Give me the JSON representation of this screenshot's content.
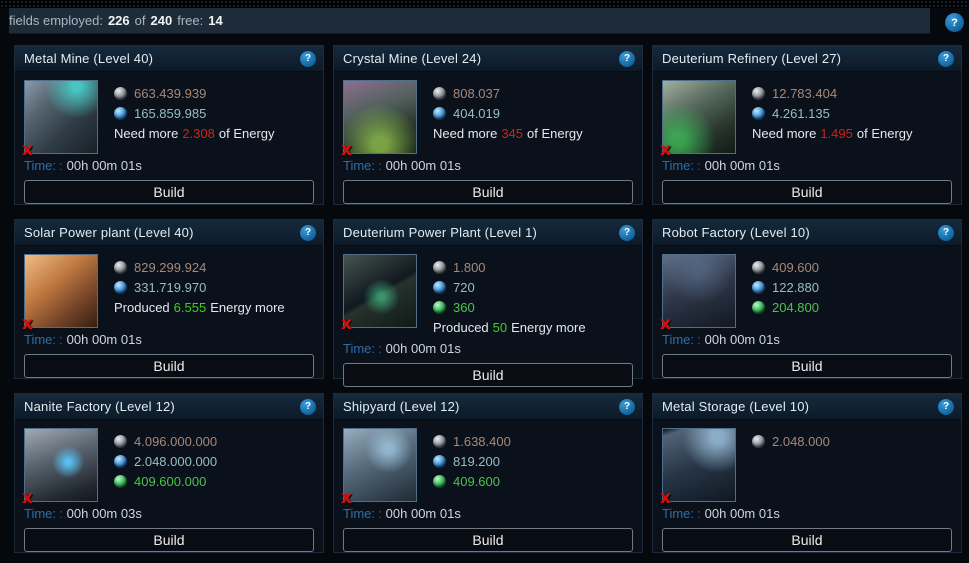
{
  "topbar": {
    "fields_label": "fields employed:",
    "fields_used": "226",
    "of_label": "of",
    "fields_total": "240",
    "free_label": "free:",
    "free_value": "14"
  },
  "labels": {
    "help_glyph": "?",
    "unavailable_glyph": "x",
    "time_label": "Time:",
    "time_separator": ":",
    "build_label": "Build"
  },
  "colors": {
    "metal_text": "#a5897a",
    "crystal_text": "#95bfc0",
    "deuterium_text": "#4cc34c",
    "energy_deficit": "#cc2418",
    "energy_surplus": "#3ed219",
    "time_label_blue": "#2f6ea5",
    "accent_help_blue": "#10659e",
    "header_bg": "#0e2030",
    "card_bg": "#0a111b",
    "page_bg": "#05080d"
  },
  "cards": [
    {
      "title": "Metal Mine (Level 40)",
      "image": "metal-mine",
      "costs": [
        {
          "resource": "metal",
          "amount": "663.439.939"
        },
        {
          "resource": "crystal",
          "amount": "165.859.985"
        }
      ],
      "energy": {
        "kind": "deficit",
        "prefix": "Need more",
        "value": "2.308",
        "suffix": "of Energy"
      },
      "time": "00h 00m 01s"
    },
    {
      "title": "Crystal Mine (Level 24)",
      "image": "crystal-mine",
      "costs": [
        {
          "resource": "metal",
          "amount": "808.037"
        },
        {
          "resource": "crystal",
          "amount": "404.019"
        }
      ],
      "energy": {
        "kind": "deficit",
        "prefix": "Need more",
        "value": "345",
        "suffix": "of Energy"
      },
      "time": "00h 00m 01s"
    },
    {
      "title": "Deuterium Refinery (Level 27)",
      "image": "deuterium-refinery",
      "costs": [
        {
          "resource": "metal",
          "amount": "12.783.404"
        },
        {
          "resource": "crystal",
          "amount": "4.261.135"
        }
      ],
      "energy": {
        "kind": "deficit",
        "prefix": "Need more",
        "value": "1.495",
        "suffix": "of Energy"
      },
      "time": "00h 00m 01s"
    },
    {
      "title": "Solar Power plant (Level 40)",
      "image": "solar-plant",
      "costs": [
        {
          "resource": "metal",
          "amount": "829.299.924"
        },
        {
          "resource": "crystal",
          "amount": "331.719.970"
        }
      ],
      "energy": {
        "kind": "surplus",
        "prefix": "Produced",
        "value": "6.555",
        "suffix": "Energy more"
      },
      "time": "00h 00m 01s"
    },
    {
      "title": "Deuterium Power Plant (Level 1)",
      "image": "deuterium-power-plant",
      "costs": [
        {
          "resource": "metal",
          "amount": "1.800"
        },
        {
          "resource": "crystal",
          "amount": "720"
        },
        {
          "resource": "deuterium",
          "amount": "360"
        }
      ],
      "energy": {
        "kind": "surplus",
        "prefix": "Produced",
        "value": "50",
        "suffix": "Energy more"
      },
      "time": "00h 00m 01s"
    },
    {
      "title": "Robot Factory (Level 10)",
      "image": "robot-factory",
      "costs": [
        {
          "resource": "metal",
          "amount": "409.600"
        },
        {
          "resource": "crystal",
          "amount": "122.880"
        },
        {
          "resource": "deuterium",
          "amount": "204.800"
        }
      ],
      "energy": null,
      "time": "00h 00m 01s"
    },
    {
      "title": "Nanite Factory (Level 12)",
      "image": "nanite-factory",
      "costs": [
        {
          "resource": "metal",
          "amount": "4.096.000.000"
        },
        {
          "resource": "crystal",
          "amount": "2.048.000.000"
        },
        {
          "resource": "deuterium",
          "amount": "409.600.000"
        }
      ],
      "energy": null,
      "time": "00h 00m 03s"
    },
    {
      "title": "Shipyard (Level 12)",
      "image": "shipyard",
      "costs": [
        {
          "resource": "metal",
          "amount": "1.638.400"
        },
        {
          "resource": "crystal",
          "amount": "819.200"
        },
        {
          "resource": "deuterium",
          "amount": "409.600"
        }
      ],
      "energy": null,
      "time": "00h 00m 01s"
    },
    {
      "title": "Metal Storage (Level 10)",
      "image": "metal-storage",
      "costs": [
        {
          "resource": "metal",
          "amount": "2.048.000"
        }
      ],
      "energy": null,
      "time": "00h 00m 01s"
    }
  ]
}
